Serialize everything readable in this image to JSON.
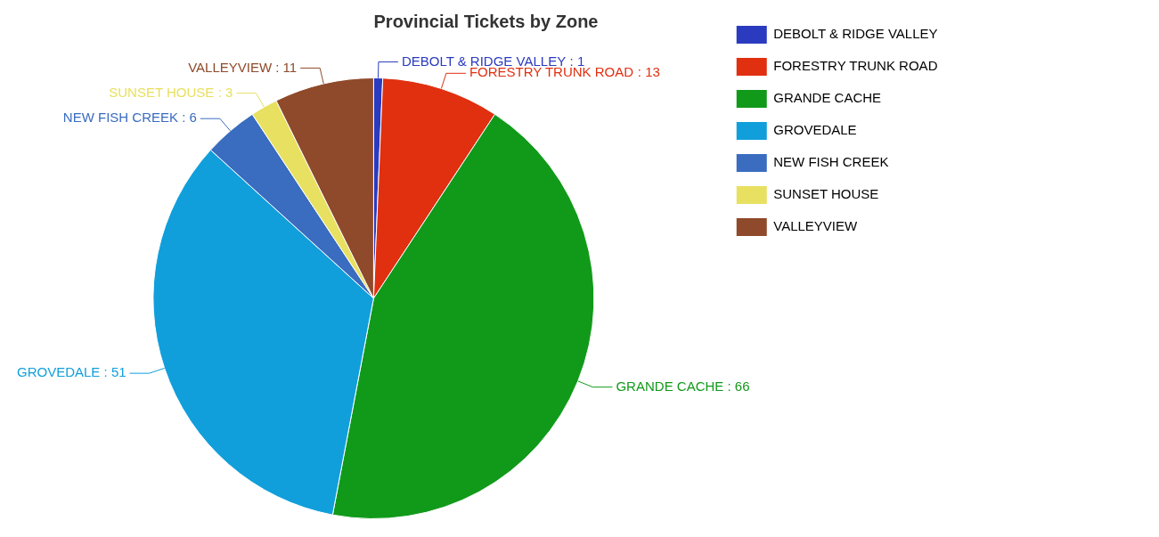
{
  "chart_data": {
    "type": "pie",
    "title": "Provincial Tickets by Zone",
    "categories": [
      "DEBOLT & RIDGE VALLEY",
      "FORESTRY TRUNK ROAD",
      "GRANDE CACHE",
      "GROVEDALE",
      "NEW FISH CREEK",
      "SUNSET HOUSE",
      "VALLEYVIEW"
    ],
    "values": [
      1,
      13,
      66,
      51,
      6,
      3,
      11
    ],
    "colors": [
      "#2b3bbf",
      "#e03010",
      "#119a1a",
      "#109fdb",
      "#3a6cc0",
      "#e8e060",
      "#8e4a2a"
    ],
    "value_labels": [
      ": 1",
      ": 13",
      ": 66",
      ": 51",
      ": 6",
      ": 3",
      ": 11"
    ],
    "legend": "top right"
  }
}
